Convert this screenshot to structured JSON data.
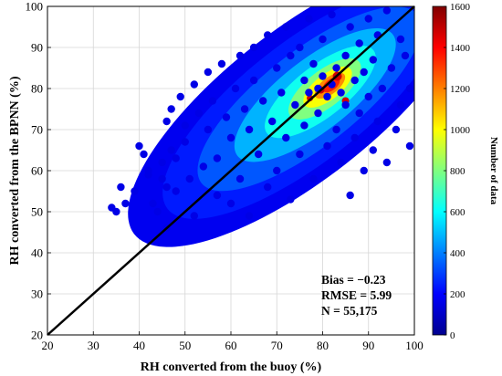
{
  "chart_data": {
    "type": "scatter",
    "title": "",
    "xlabel": "RH converted from the buoy (%)",
    "ylabel": "RH converted from the BPNN (%)",
    "xlim": [
      20,
      100
    ],
    "ylim": [
      20,
      100
    ],
    "xticks": [
      20,
      30,
      40,
      50,
      60,
      70,
      80,
      90,
      100
    ],
    "yticks": [
      20,
      30,
      40,
      50,
      60,
      70,
      80,
      90,
      100
    ],
    "grid": true,
    "series": [
      {
        "kind": "density-scatter",
        "points": [
          [
            34,
            51
          ],
          [
            35,
            50
          ],
          [
            36,
            56
          ],
          [
            37,
            52
          ],
          [
            39,
            55
          ],
          [
            40,
            66
          ],
          [
            41,
            64
          ],
          [
            42,
            60
          ],
          [
            42,
            59
          ],
          [
            43,
            52
          ],
          [
            44,
            50
          ],
          [
            45,
            58
          ],
          [
            45,
            62
          ],
          [
            46,
            72
          ],
          [
            46,
            56
          ],
          [
            46,
            46
          ],
          [
            47,
            65
          ],
          [
            47,
            75
          ],
          [
            48,
            63
          ],
          [
            48,
            55
          ],
          [
            49,
            78
          ],
          [
            50,
            71
          ],
          [
            50,
            67
          ],
          [
            51,
            58
          ],
          [
            52,
            81
          ],
          [
            52,
            49
          ],
          [
            53,
            74
          ],
          [
            54,
            61
          ],
          [
            55,
            84
          ],
          [
            55,
            70
          ],
          [
            56,
            77
          ],
          [
            57,
            63
          ],
          [
            57,
            54
          ],
          [
            58,
            86
          ],
          [
            59,
            73
          ],
          [
            60,
            68
          ],
          [
            60,
            52
          ],
          [
            61,
            80
          ],
          [
            62,
            88
          ],
          [
            62,
            58
          ],
          [
            63,
            75
          ],
          [
            64,
            70
          ],
          [
            64,
            49
          ],
          [
            65,
            90
          ],
          [
            65,
            82
          ],
          [
            66,
            64
          ],
          [
            67,
            77
          ],
          [
            68,
            93
          ],
          [
            68,
            56
          ],
          [
            69,
            72
          ],
          [
            70,
            85
          ],
          [
            70,
            60
          ],
          [
            71,
            79
          ],
          [
            72,
            95
          ],
          [
            72,
            68
          ],
          [
            73,
            88
          ],
          [
            73,
            53
          ],
          [
            74,
            76
          ],
          [
            75,
            90
          ],
          [
            75,
            64
          ],
          [
            76,
            82
          ],
          [
            76,
            71
          ],
          [
            77,
            79
          ],
          [
            77,
            97
          ],
          [
            78,
            86
          ],
          [
            78,
            58
          ],
          [
            79,
            80
          ],
          [
            79,
            74
          ],
          [
            80,
            92
          ],
          [
            80,
            83
          ],
          [
            81,
            78
          ],
          [
            81,
            66
          ],
          [
            82,
            81
          ],
          [
            82,
            98
          ],
          [
            83,
            85
          ],
          [
            83,
            70
          ],
          [
            84,
            79
          ],
          [
            84,
            62
          ],
          [
            85,
            88
          ],
          [
            85,
            76
          ],
          [
            86,
            95
          ],
          [
            86,
            54
          ],
          [
            87,
            82
          ],
          [
            87,
            68
          ],
          [
            88,
            91
          ],
          [
            88,
            74
          ],
          [
            89,
            84
          ],
          [
            89,
            60
          ],
          [
            90,
            97
          ],
          [
            90,
            78
          ],
          [
            91,
            87
          ],
          [
            91,
            65
          ],
          [
            92,
            93
          ],
          [
            92,
            72
          ],
          [
            93,
            80
          ],
          [
            94,
            99
          ],
          [
            94,
            62
          ],
          [
            95,
            85
          ],
          [
            96,
            70
          ],
          [
            97,
            92
          ],
          [
            97,
            76
          ],
          [
            98,
            88
          ],
          [
            99,
            66
          ],
          [
            99,
            80
          ]
        ]
      },
      {
        "name": "",
        "kind": "reference-line",
        "x": [
          20,
          100
        ],
        "y": [
          20,
          100
        ],
        "color": "#000000"
      }
    ],
    "density_peak": [
      82,
      81
    ],
    "colorbar": {
      "label": "Number of data",
      "min": 0,
      "max": 1600,
      "ticks": [
        0,
        200,
        400,
        600,
        800,
        1000,
        1200,
        1400,
        1600
      ],
      "colormap": "jet",
      "placement": "right"
    },
    "annotations": [
      "Bias = −0.23",
      "RMSE = 5.99",
      "N = 55,175"
    ]
  }
}
